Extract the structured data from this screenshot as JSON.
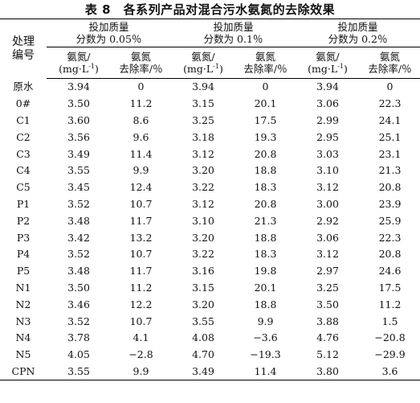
{
  "caption": "表 8　各系列产品对混合污水氨氮的去除效果",
  "header": {
    "id_label_line1": "处理",
    "id_label_line2": "编号",
    "groups": [
      {
        "line1": "投加质量",
        "line2": "分数为 0.05％"
      },
      {
        "line1": "投加质量",
        "line2": "分数为 0.1％"
      },
      {
        "line1": "投加质量",
        "line2": "分数为 0.2％"
      }
    ],
    "sub_value_line1": "氨氮/",
    "sub_value_line2_pre": "(mg·L",
    "sub_value_line2_sup": "-1",
    "sub_value_line2_post": ")",
    "sub_rate_line1": "氨氮",
    "sub_rate_line2": "去除率/％"
  },
  "rows": [
    {
      "id": "原水",
      "v1": "3.94",
      "r1": "0",
      "v2": "3.94",
      "r2": "0",
      "v3": "3.94",
      "r3": "0"
    },
    {
      "id": "0#",
      "v1": "3.50",
      "r1": "11.2",
      "v2": "3.15",
      "r2": "20.1",
      "v3": "3.06",
      "r3": "22.3"
    },
    {
      "id": "C1",
      "v1": "3.60",
      "r1": "8.6",
      "v2": "3.25",
      "r2": "17.5",
      "v3": "2.99",
      "r3": "24.1"
    },
    {
      "id": "C2",
      "v1": "3.56",
      "r1": "9.6",
      "v2": "3.18",
      "r2": "19.3",
      "v3": "2.95",
      "r3": "25.1"
    },
    {
      "id": "C3",
      "v1": "3.49",
      "r1": "11.4",
      "v2": "3.12",
      "r2": "20.8",
      "v3": "3.03",
      "r3": "23.1"
    },
    {
      "id": "C4",
      "v1": "3.55",
      "r1": "9.9",
      "v2": "3.20",
      "r2": "18.8",
      "v3": "3.10",
      "r3": "21.3"
    },
    {
      "id": "C5",
      "v1": "3.45",
      "r1": "12.4",
      "v2": "3.22",
      "r2": "18.3",
      "v3": "3.12",
      "r3": "20.8"
    },
    {
      "id": "P1",
      "v1": "3.52",
      "r1": "10.7",
      "v2": "3.12",
      "r2": "20.8",
      "v3": "3.00",
      "r3": "23.9"
    },
    {
      "id": "P2",
      "v1": "3.48",
      "r1": "11.7",
      "v2": "3.10",
      "r2": "21.3",
      "v3": "2.92",
      "r3": "25.9"
    },
    {
      "id": "P3",
      "v1": "3.42",
      "r1": "13.2",
      "v2": "3.20",
      "r2": "18.8",
      "v3": "3.06",
      "r3": "22.3"
    },
    {
      "id": "P4",
      "v1": "3.52",
      "r1": "10.7",
      "v2": "3.22",
      "r2": "18.3",
      "v3": "3.12",
      "r3": "20.8"
    },
    {
      "id": "P5",
      "v1": "3.48",
      "r1": "11.7",
      "v2": "3.16",
      "r2": "19.8",
      "v3": "2.97",
      "r3": "24.6"
    },
    {
      "id": "N1",
      "v1": "3.50",
      "r1": "11.2",
      "v2": "3.15",
      "r2": "20.1",
      "v3": "3.25",
      "r3": "17.5"
    },
    {
      "id": "N2",
      "v1": "3.46",
      "r1": "12.2",
      "v2": "3.20",
      "r2": "18.8",
      "v3": "3.50",
      "r3": "11.2"
    },
    {
      "id": "N3",
      "v1": "3.52",
      "r1": "10.7",
      "v2": "3.55",
      "r2": "9.9",
      "v3": "3.88",
      "r3": "1.5"
    },
    {
      "id": "N4",
      "v1": "3.78",
      "r1": "4.1",
      "v2": "4.08",
      "r2": "−3.6",
      "v3": "4.76",
      "r3": "−20.8"
    },
    {
      "id": "N5",
      "v1": "4.05",
      "r1": "−2.8",
      "v2": "4.70",
      "r2": "−19.3",
      "v3": "5.12",
      "r3": "−29.9"
    },
    {
      "id": "CPN",
      "v1": "3.55",
      "r1": "9.9",
      "v2": "3.49",
      "r2": "11.4",
      "v3": "3.80",
      "r3": "3.6"
    }
  ]
}
